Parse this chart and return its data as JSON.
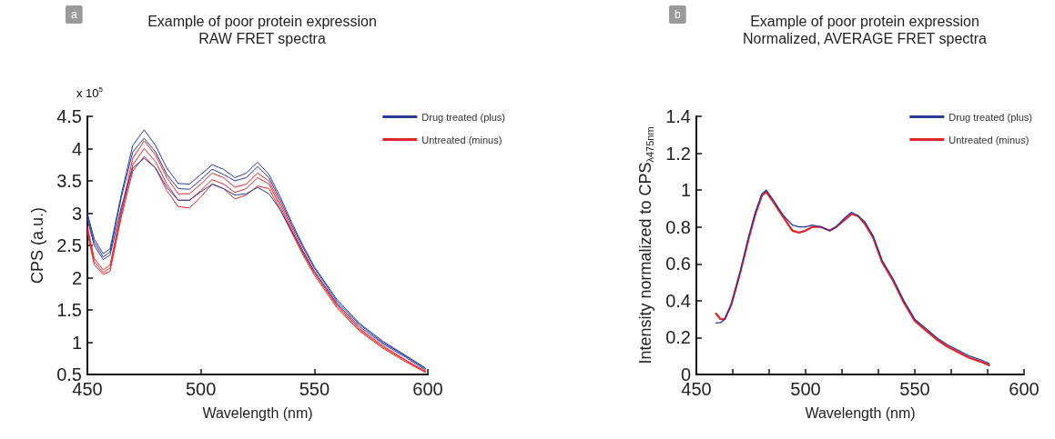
{
  "chart_data": [
    {
      "type": "line",
      "title": "Example of poor protein expression",
      "subtitle": "RAW FRET spectra",
      "xlabel": "Wavelength (nm)",
      "ylabel": "CPS (a.u.)",
      "annotations": [
        "a",
        "x 10$^{5}$"
      ],
      "x": [
        450,
        453,
        457,
        460,
        465,
        470,
        475,
        480,
        485,
        490,
        495,
        500,
        505,
        510,
        515,
        520,
        525,
        530,
        535,
        540,
        545,
        550,
        560,
        570,
        580,
        590,
        599
      ],
      "xlim": [
        450,
        600
      ],
      "xticks": [
        450,
        500,
        550,
        600
      ],
      "ylim": [
        0.5,
        4.5
      ],
      "yticks": [
        0.5,
        1,
        1.5,
        2,
        2.5,
        3,
        3.5,
        4,
        4.5
      ],
      "legend": "top right",
      "series": [
        {
          "name": "Drug treated (plus)",
          "color": "#2b3a9a",
          "values": [
            3.0,
            2.6,
            2.37,
            2.45,
            3.3,
            4.05,
            4.29,
            4.05,
            3.7,
            3.46,
            3.45,
            3.6,
            3.75,
            3.68,
            3.55,
            3.62,
            3.79,
            3.6,
            3.25,
            2.86,
            2.5,
            2.17,
            1.66,
            1.29,
            1.02,
            0.8,
            0.6
          ]
        },
        {
          "color": "#2b3a9a",
          "values": [
            2.95,
            2.55,
            2.32,
            2.4,
            3.25,
            3.95,
            4.16,
            3.95,
            3.6,
            3.38,
            3.37,
            3.52,
            3.68,
            3.6,
            3.5,
            3.55,
            3.72,
            3.55,
            3.2,
            2.82,
            2.47,
            2.15,
            1.63,
            1.27,
            1.0,
            0.79,
            0.59
          ]
        },
        {
          "color": "#2b3a9a",
          "values": [
            2.9,
            2.5,
            2.28,
            2.35,
            3.1,
            3.7,
            3.85,
            3.7,
            3.4,
            3.2,
            3.2,
            3.33,
            3.45,
            3.38,
            3.28,
            3.3,
            3.4,
            3.3,
            3.05,
            2.72,
            2.4,
            2.1,
            1.6,
            1.24,
            0.98,
            0.77,
            0.57
          ]
        },
        {
          "name": "Untreated (minus)",
          "color": "#e0262b",
          "values": [
            2.8,
            2.3,
            2.12,
            2.2,
            3.05,
            3.85,
            4.12,
            3.9,
            3.55,
            3.3,
            3.3,
            3.45,
            3.62,
            3.55,
            3.4,
            3.45,
            3.62,
            3.5,
            3.15,
            2.78,
            2.42,
            2.1,
            1.58,
            1.21,
            0.95,
            0.73,
            0.55
          ]
        },
        {
          "color": "#e0262b",
          "values": [
            2.75,
            2.25,
            2.08,
            2.15,
            3.0,
            3.75,
            4.0,
            3.8,
            3.45,
            3.2,
            3.2,
            3.35,
            3.52,
            3.45,
            3.32,
            3.38,
            3.55,
            3.45,
            3.1,
            2.74,
            2.38,
            2.07,
            1.56,
            1.19,
            0.93,
            0.72,
            0.54
          ]
        },
        {
          "color": "#e0262b",
          "values": [
            2.7,
            2.2,
            2.05,
            2.1,
            2.95,
            3.65,
            3.88,
            3.7,
            3.35,
            3.1,
            3.08,
            3.25,
            3.45,
            3.38,
            3.22,
            3.28,
            3.42,
            3.38,
            3.05,
            2.7,
            2.35,
            2.04,
            1.53,
            1.17,
            0.91,
            0.7,
            0.53
          ]
        }
      ]
    },
    {
      "type": "line",
      "title": "Example of poor protein expression",
      "subtitle": "Normalized, AVERAGE FRET spectra",
      "xlabel": "Wavelength (nm)",
      "ylabel": "Intensity normalized to CPS$_{λ475nm}$",
      "annotations": [
        "b"
      ],
      "x": [
        459,
        461,
        463,
        466,
        470,
        474,
        477,
        480,
        482,
        485,
        490,
        494,
        497,
        500,
        503,
        507,
        511,
        514,
        518,
        521,
        524,
        527,
        531,
        535,
        540,
        545,
        550,
        555,
        560,
        565,
        570,
        575,
        580,
        584
      ],
      "xlim": [
        450,
        600
      ],
      "xticks": [
        450,
        {
          "value": 466.7,
          "label": null
        },
        {
          "value": 483.3,
          "label": null
        },
        500,
        {
          "value": 516.7,
          "label": null
        },
        {
          "value": 533.3,
          "label": null
        },
        550,
        {
          "value": 566.7,
          "label": null
        },
        {
          "value": 583.3,
          "label": null
        },
        600
      ],
      "ylim": [
        0,
        1.4
      ],
      "yticks": [
        0,
        0.2,
        0.4,
        0.6,
        0.8,
        1,
        1.2,
        1.4
      ],
      "legend": "top right",
      "series": [
        {
          "name": "Drug treated (plus)",
          "color": "#2b3a9a",
          "values": [
            0.28,
            0.28,
            0.3,
            0.38,
            0.55,
            0.75,
            0.88,
            0.98,
            1.0,
            0.95,
            0.86,
            0.81,
            0.8,
            0.8,
            0.81,
            0.8,
            0.78,
            0.8,
            0.85,
            0.88,
            0.86,
            0.83,
            0.75,
            0.62,
            0.52,
            0.4,
            0.3,
            0.25,
            0.2,
            0.16,
            0.13,
            0.1,
            0.08,
            0.06
          ]
        },
        {
          "name": "Untreated (minus)",
          "color": "#e0262b",
          "values": [
            0.33,
            0.3,
            0.3,
            0.38,
            0.55,
            0.74,
            0.87,
            0.97,
            0.99,
            0.94,
            0.85,
            0.78,
            0.77,
            0.78,
            0.8,
            0.8,
            0.78,
            0.8,
            0.84,
            0.87,
            0.86,
            0.82,
            0.74,
            0.61,
            0.51,
            0.39,
            0.29,
            0.24,
            0.19,
            0.15,
            0.12,
            0.09,
            0.07,
            0.05
          ]
        }
      ]
    }
  ]
}
